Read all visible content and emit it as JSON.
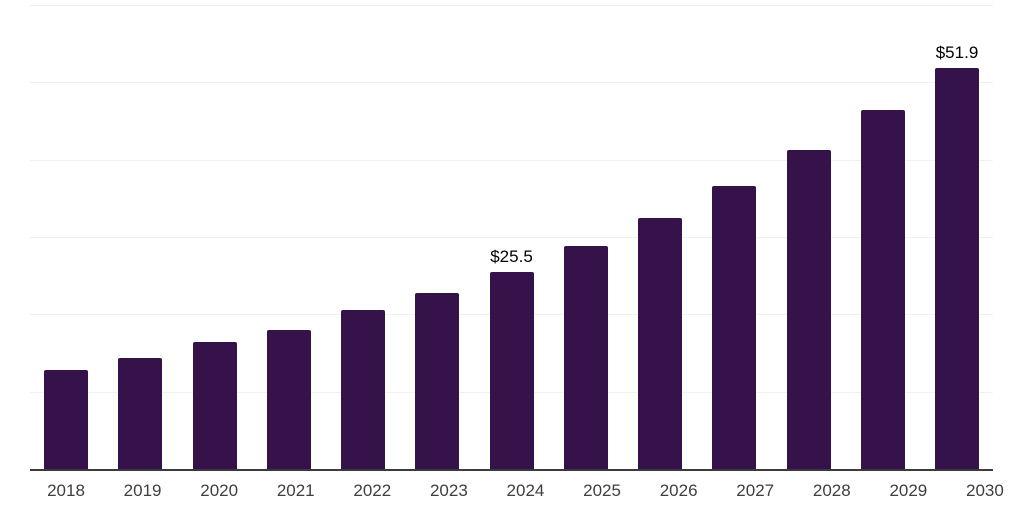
{
  "chart_data": {
    "type": "bar",
    "title": "",
    "xlabel": "",
    "ylabel": "",
    "categories": [
      "2018",
      "2019",
      "2020",
      "2021",
      "2022",
      "2023",
      "2024",
      "2025",
      "2026",
      "2027",
      "2028",
      "2029",
      "2030"
    ],
    "values": [
      12.8,
      14.4,
      16.4,
      18.0,
      20.5,
      22.7,
      25.5,
      28.8,
      32.5,
      36.6,
      41.2,
      46.4,
      51.9
    ],
    "bar_labels": [
      "",
      "",
      "",
      "",
      "",
      "",
      "$25.5",
      "",
      "",
      "",
      "",
      "",
      "$51.9"
    ],
    "ylim": [
      0,
      60
    ],
    "y_gridlines": [
      10,
      20,
      30,
      40,
      50,
      60
    ],
    "grid": "horizontal-only",
    "legend": "none",
    "colors": {
      "bar": "#35124a",
      "axis_line": "#3b3b3b",
      "gridline": "#f1f1f1",
      "value_label": "#000000",
      "tick_label": "#3f3f3f",
      "background": "#ffffff"
    }
  }
}
